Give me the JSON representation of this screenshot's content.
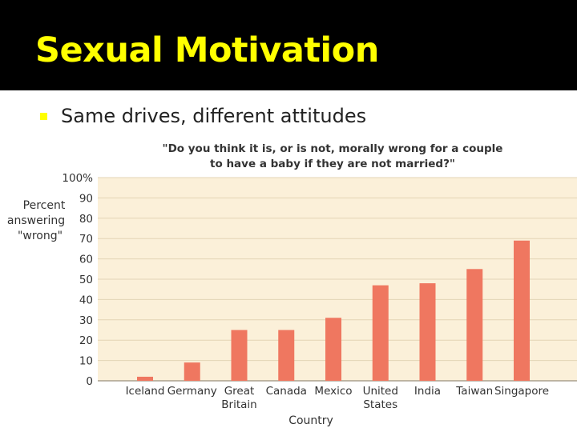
{
  "slide": {
    "title": "Sexual Motivation",
    "bullet": "Same drives, different attitudes"
  },
  "colors": {
    "title_bg": "#000000",
    "title_text": "#ffff00",
    "bullet": "#ffff00",
    "plot_bg": "#fbf0d9",
    "bar": "#ef7760",
    "grid": "#e3d4b6"
  },
  "chart_data": {
    "type": "bar",
    "title_lines": [
      "\"Do you think it is, or is not, morally wrong for a couple",
      "to have a baby if they are not married?\""
    ],
    "ylabel_lines": [
      "Percent",
      "answering",
      "\"wrong\""
    ],
    "xlabel": "Country",
    "yticks": [
      "0",
      "10",
      "20",
      "30",
      "40",
      "50",
      "60",
      "70",
      "80",
      "90",
      "100%"
    ],
    "ylim": [
      0,
      100
    ],
    "categories": [
      [
        "Iceland"
      ],
      [
        "Germany"
      ],
      [
        "Great",
        "Britain"
      ],
      [
        "Canada"
      ],
      [
        "Mexico"
      ],
      [
        "United",
        "States"
      ],
      [
        "India"
      ],
      [
        "Taiwan"
      ],
      [
        "Singapore"
      ]
    ],
    "values": [
      2,
      9,
      25,
      25,
      31,
      47,
      48,
      55,
      69
    ],
    "grid": true
  }
}
